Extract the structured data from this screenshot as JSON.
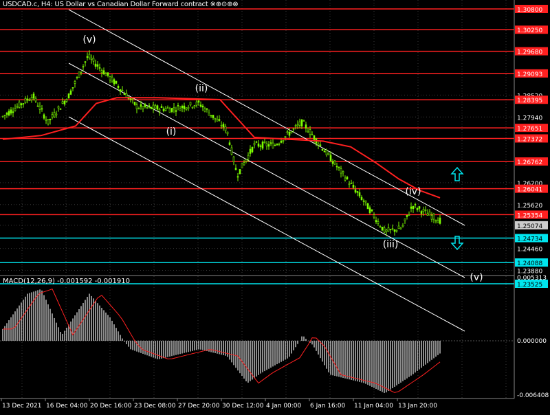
{
  "chart_header": "USDCAD.c, H4: US Dollar vs Canadian Dollar Forward contract  ※⊕⊙⊕⊗",
  "price_scale": [
    "1.30800",
    "1.30250",
    "1.29680",
    "1.29093",
    "1.28520",
    "1.28395",
    "1.27940",
    "1.27651",
    "1.27372",
    "1.26762",
    "1.26200",
    "1.26041",
    "1.25620",
    "1.25354",
    "1.25074",
    "1.24734",
    "1.24460",
    "1.24088",
    "1.23880",
    "1.23525"
  ],
  "red_levels": [
    "1.30800",
    "1.30250",
    "1.29680",
    "1.29093",
    "1.28395",
    "1.27651",
    "1.27372",
    "1.26762",
    "1.26041",
    "1.25354"
  ],
  "cyan_levels": [
    "1.24734",
    "1.24088",
    "1.23525"
  ],
  "current_price": "1.25074",
  "wave_labels": [
    "(v)",
    "(ii)",
    "(i)",
    "(iv)",
    "(iii)",
    "(v)"
  ],
  "macd": {
    "label": "MACD(12,26,9) -0.001592 -0.001910",
    "scale": [
      "0.005313",
      "0.000000",
      "-0.006408"
    ]
  },
  "time_axis": [
    "13 Dec 2021",
    "16 Dec 04:00",
    "20 Dec 16:00",
    "23 Dec 08:00",
    "27 Dec 20:00",
    "30 Dec 12:00",
    "4 Jan 00:00",
    "6 Jan 16:00",
    "11 Jan 04:00",
    "13 Jan 20:00"
  ],
  "colors": {
    "bg": "#000000",
    "candle": "#7CFC00",
    "red_line": "#FF2020",
    "cyan_line": "#00E5EE",
    "channel": "#FFFFFF",
    "grid": "#3a3a3a",
    "arrow": "#00E5EE"
  },
  "icons": {
    "up_arrow": "arrow-up-outline-icon",
    "down_arrow": "arrow-down-outline-icon"
  }
}
